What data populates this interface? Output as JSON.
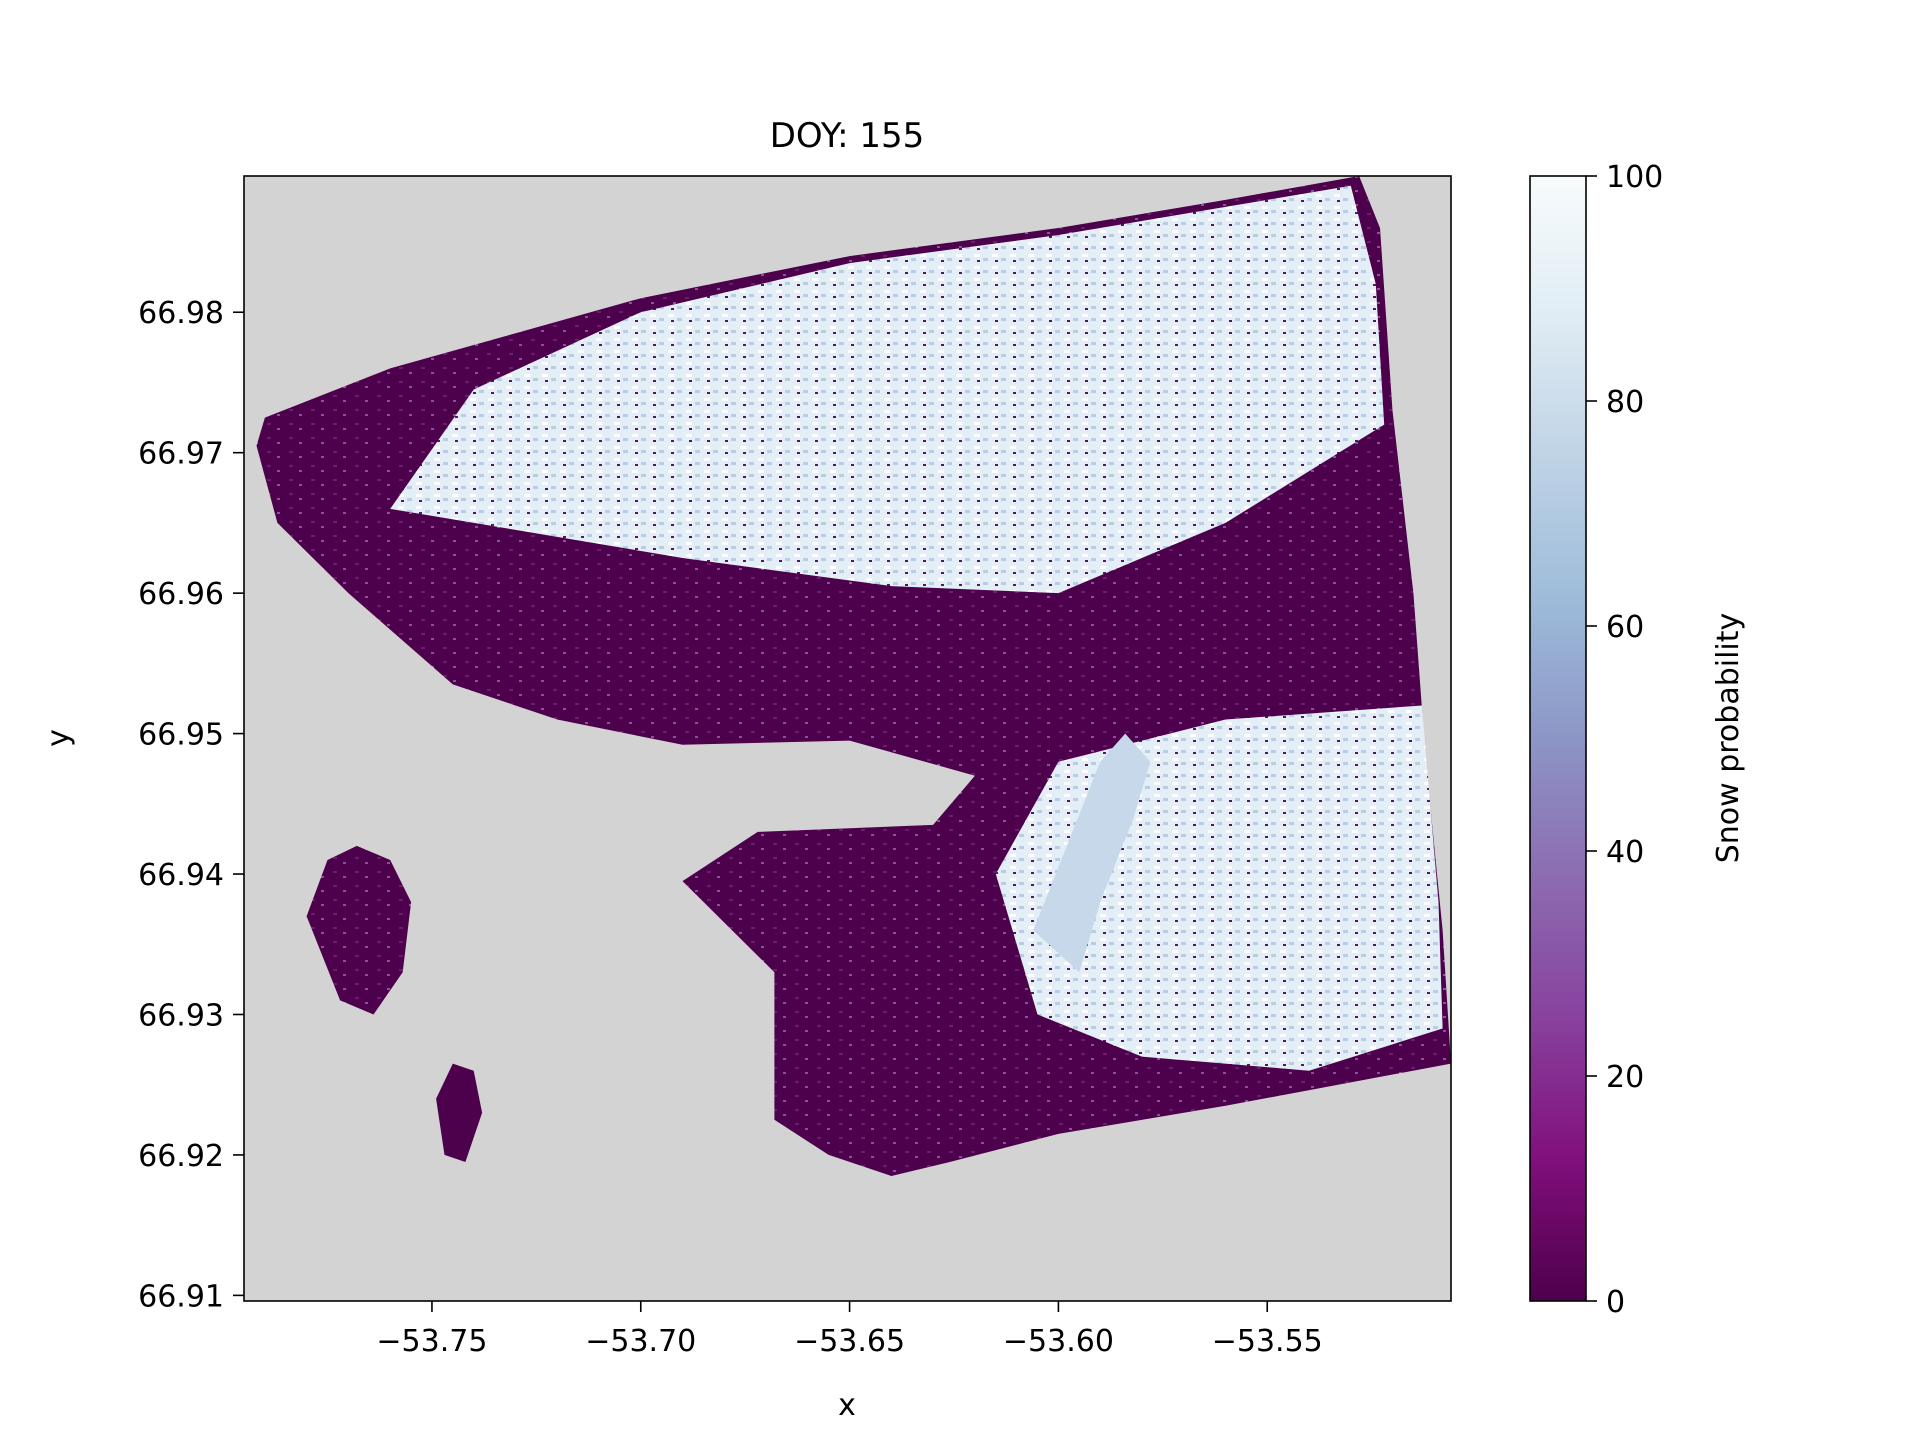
{
  "chart_data": {
    "type": "heatmap",
    "title": "DOY: 155",
    "xlabel": "x",
    "ylabel": "y",
    "xlim": [
      -53.795,
      -53.506
    ],
    "ylim": [
      66.9096,
      66.9897
    ],
    "xticks": [
      -53.75,
      -53.7,
      -53.65,
      -53.6,
      -53.55
    ],
    "xtick_labels": [
      "−53.75",
      "−53.70",
      "−53.65",
      "−53.60",
      "−53.55"
    ],
    "yticks": [
      66.91,
      66.92,
      66.93,
      66.94,
      66.95,
      66.96,
      66.97,
      66.98
    ],
    "ytick_labels": [
      "66.91",
      "66.92",
      "66.93",
      "66.94",
      "66.95",
      "66.96",
      "66.97",
      "66.98"
    ],
    "grid": false,
    "background_color": "#d3d3d3",
    "colormap": "BuPu_r",
    "colorbar": {
      "label": "Snow probability",
      "range": [
        0,
        100
      ],
      "ticks": [
        0,
        20,
        40,
        60,
        80,
        100
      ],
      "tick_labels": [
        "0",
        "20",
        "40",
        "60",
        "80",
        "100"
      ],
      "colors": [
        "#4d004b",
        "#810f7c",
        "#88419d",
        "#8c6bb1",
        "#8c96c6",
        "#9ebcda",
        "#bfd3e6",
        "#e0ecf4",
        "#f7fcfd"
      ]
    },
    "regions": [
      {
        "name": "main-scene",
        "value_note": "mixed",
        "polygon": [
          [
            -53.792,
            66.9705
          ],
          [
            -53.79,
            66.9725
          ],
          [
            -53.76,
            66.976
          ],
          [
            -53.7,
            66.981
          ],
          [
            -53.65,
            66.984
          ],
          [
            -53.6,
            66.986
          ],
          [
            -53.56,
            66.988
          ],
          [
            -53.528,
            66.9897
          ],
          [
            -53.523,
            66.986
          ],
          [
            -53.52,
            66.973
          ],
          [
            -53.515,
            66.96
          ],
          [
            -53.512,
            66.948
          ],
          [
            -53.508,
            66.936
          ],
          [
            -53.506,
            66.9265
          ],
          [
            -53.56,
            66.9235
          ],
          [
            -53.6,
            66.9215
          ],
          [
            -53.626,
            66.9195
          ],
          [
            -53.64,
            66.9185
          ],
          [
            -53.655,
            66.92
          ],
          [
            -53.668,
            66.9225
          ],
          [
            -53.668,
            66.933
          ],
          [
            -53.69,
            66.9395
          ],
          [
            -53.672,
            66.943
          ],
          [
            -53.63,
            66.9435
          ],
          [
            -53.62,
            66.947
          ],
          [
            -53.65,
            66.9495
          ],
          [
            -53.69,
            66.9492
          ],
          [
            -53.72,
            66.951
          ],
          [
            -53.745,
            66.9535
          ],
          [
            -53.77,
            66.96
          ],
          [
            -53.787,
            66.965
          ]
        ]
      },
      {
        "name": "snow-upper",
        "value_note": "high",
        "polygon": [
          [
            -53.76,
            66.966
          ],
          [
            -53.74,
            66.9745
          ],
          [
            -53.7,
            66.98
          ],
          [
            -53.65,
            66.9835
          ],
          [
            -53.6,
            66.9855
          ],
          [
            -53.56,
            66.9875
          ],
          [
            -53.53,
            66.989
          ],
          [
            -53.524,
            66.982
          ],
          [
            -53.522,
            66.972
          ],
          [
            -53.56,
            66.965
          ],
          [
            -53.6,
            66.96
          ],
          [
            -53.64,
            66.9605
          ],
          [
            -53.69,
            66.9625
          ],
          [
            -53.73,
            66.9645
          ]
        ]
      },
      {
        "name": "snow-east",
        "value_note": "high",
        "polygon": [
          [
            -53.6,
            66.948
          ],
          [
            -53.56,
            66.951
          ],
          [
            -53.513,
            66.952
          ],
          [
            -53.509,
            66.938
          ],
          [
            -53.508,
            66.929
          ],
          [
            -53.54,
            66.926
          ],
          [
            -53.58,
            66.927
          ],
          [
            -53.605,
            66.93
          ],
          [
            -53.615,
            66.94
          ]
        ]
      },
      {
        "name": "lake",
        "value_note": "mid-high",
        "polygon": [
          [
            -53.595,
            66.933
          ],
          [
            -53.59,
            66.938
          ],
          [
            -53.582,
            66.944
          ],
          [
            -53.578,
            66.948
          ],
          [
            -53.584,
            66.95
          ],
          [
            -53.59,
            66.948
          ],
          [
            -53.598,
            66.942
          ],
          [
            -53.606,
            66.936
          ]
        ]
      },
      {
        "name": "island-west",
        "value_note": "low",
        "polygon": [
          [
            -53.78,
            66.937
          ],
          [
            -53.775,
            66.941
          ],
          [
            -53.768,
            66.942
          ],
          [
            -53.76,
            66.941
          ],
          [
            -53.755,
            66.938
          ],
          [
            -53.757,
            66.933
          ],
          [
            -53.764,
            66.93
          ],
          [
            -53.772,
            66.931
          ]
        ]
      },
      {
        "name": "island-small",
        "value_note": "low",
        "polygon": [
          [
            -53.745,
            66.9265
          ],
          [
            -53.74,
            66.926
          ],
          [
            -53.738,
            66.923
          ],
          [
            -53.742,
            66.9195
          ],
          [
            -53.747,
            66.92
          ],
          [
            -53.749,
            66.924
          ]
        ]
      }
    ]
  }
}
